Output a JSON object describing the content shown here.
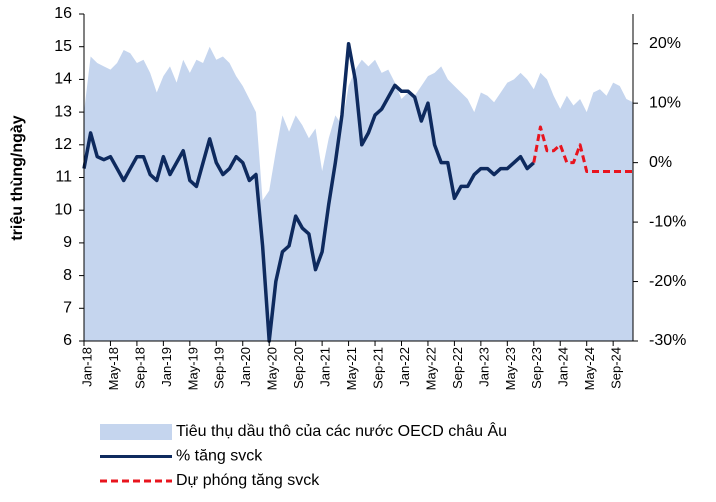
{
  "chart_data": {
    "type": "line",
    "ylabel": "triệu thùng/ngày",
    "categories": [
      "Jan-18",
      null,
      null,
      null,
      "May-18",
      null,
      null,
      null,
      "Sep-18",
      null,
      null,
      null,
      "Jan-19",
      null,
      null,
      null,
      "May-19",
      null,
      null,
      null,
      "Sep-19",
      null,
      null,
      null,
      "Jan-20",
      null,
      null,
      null,
      "May-20",
      null,
      null,
      null,
      "Sep-20",
      null,
      null,
      null,
      "Jan-21",
      null,
      null,
      null,
      "May-21",
      null,
      null,
      null,
      "Sep-21",
      null,
      null,
      null,
      "Jan-22",
      null,
      null,
      null,
      "May-22",
      null,
      null,
      null,
      "Sep-22",
      null,
      null,
      null,
      "Jan-23",
      null,
      null,
      null,
      "May-23",
      null,
      null,
      null,
      "Sep-23",
      null,
      null,
      null,
      "Jan-24",
      null,
      null,
      null,
      "May-24",
      null,
      null,
      null,
      "Sep-24",
      null,
      null,
      null
    ],
    "series": [
      {
        "name": "Tiêu thụ dầu thô của các nước OECD châu Âu",
        "style": "area",
        "color": "#c5d5ee",
        "axis": "y",
        "values": [
          13.0,
          14.7,
          14.5,
          14.4,
          14.3,
          14.5,
          14.9,
          14.8,
          14.5,
          14.6,
          14.2,
          13.6,
          14.1,
          14.4,
          13.9,
          14.6,
          14.2,
          14.6,
          14.5,
          15.0,
          14.6,
          14.7,
          14.5,
          14.1,
          13.8,
          13.4,
          13.0,
          10.3,
          10.6,
          11.8,
          12.9,
          12.4,
          12.9,
          12.6,
          12.2,
          12.5,
          11.2,
          12.2,
          12.9,
          12.6,
          13.8,
          14.3,
          14.6,
          14.4,
          14.6,
          14.2,
          14.3,
          13.9,
          13.4,
          13.6,
          13.5,
          13.8,
          14.1,
          14.2,
          14.4,
          14.0,
          13.8,
          13.6,
          13.4,
          13.0,
          13.6,
          13.5,
          13.3,
          13.6,
          13.9,
          14.0,
          14.2,
          14.0,
          13.7,
          14.2,
          14.0,
          13.5,
          13.1,
          13.5,
          13.2,
          13.4,
          13.0,
          13.6,
          13.7,
          13.5,
          13.9,
          13.8,
          13.4,
          13.3
        ]
      },
      {
        "name": "% tăng svck",
        "style": "solid",
        "color": "#0e2a5e",
        "axis": "y2",
        "values": [
          -1,
          5,
          1,
          0.5,
          1,
          -1,
          -3,
          -1,
          1,
          1,
          -2,
          -3,
          1,
          -2,
          0,
          2,
          -3,
          -4,
          0,
          4,
          0,
          -2,
          -1,
          1,
          0,
          -3,
          -2,
          -14,
          -30,
          -20,
          -15,
          -14,
          -9,
          -11,
          -12,
          -18,
          -15,
          -7,
          0,
          8,
          20,
          14,
          3,
          5,
          8,
          9,
          11,
          13,
          12,
          12,
          11,
          7,
          10,
          3,
          0,
          0,
          -6,
          -4,
          -4,
          -2,
          -1,
          -1,
          -2,
          -1,
          -1,
          0,
          1,
          -1,
          0,
          null,
          null,
          null,
          null,
          null,
          null,
          null,
          null,
          null,
          null,
          null,
          null,
          null,
          null,
          null
        ]
      },
      {
        "name": "Dự phóng tăng svck",
        "style": "dashed",
        "color": "#e8141e",
        "axis": "y2",
        "values": [
          null,
          null,
          null,
          null,
          null,
          null,
          null,
          null,
          null,
          null,
          null,
          null,
          null,
          null,
          null,
          null,
          null,
          null,
          null,
          null,
          null,
          null,
          null,
          null,
          null,
          null,
          null,
          null,
          null,
          null,
          null,
          null,
          null,
          null,
          null,
          null,
          null,
          null,
          null,
          null,
          null,
          null,
          null,
          null,
          null,
          null,
          null,
          null,
          null,
          null,
          null,
          null,
          null,
          null,
          null,
          null,
          null,
          null,
          null,
          null,
          null,
          null,
          null,
          null,
          null,
          null,
          null,
          null,
          0,
          6,
          2,
          2,
          3,
          0,
          0,
          3,
          -1.5,
          -1.5,
          -1.5,
          -1.5,
          -1.5,
          -1.5,
          -1.5,
          -1.5
        ]
      }
    ],
    "ylim": [
      6,
      16
    ],
    "yticks": [
      6,
      7,
      8,
      9,
      10,
      11,
      12,
      13,
      14,
      15,
      16
    ],
    "y2lim": [
      -30,
      25
    ],
    "y2ticks": [
      {
        "value": -30,
        "label": "-30%"
      },
      {
        "value": -20,
        "label": "-20%"
      },
      {
        "value": -10,
        "label": "-10%"
      },
      {
        "value": 0,
        "label": "0%"
      },
      {
        "value": 10,
        "label": "10%"
      },
      {
        "value": 20,
        "label": "20%"
      }
    ],
    "legend": "bottom"
  }
}
